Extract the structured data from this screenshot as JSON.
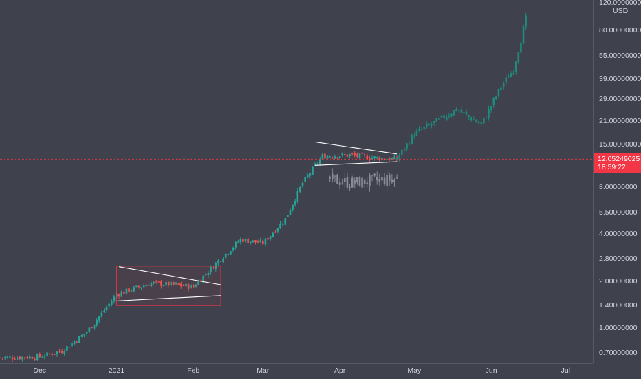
{
  "axis": {
    "unit": "USD",
    "price_ticks": [
      "120.00000000",
      "80.00000000",
      "55.00000000",
      "39.00000000",
      "29.00000000",
      "21.00000000",
      "15.00000000",
      "8.00000000",
      "5.50000000",
      "4.00000000",
      "2.80000000",
      "2.00000000",
      "1.40000000",
      "1.00000000",
      "0.70000000"
    ],
    "time_ticks": [
      "Dec",
      "2021",
      "Feb",
      "Mar",
      "Apr",
      "May",
      "Jun",
      "Jul"
    ]
  },
  "last_price": {
    "value": "12.05249025",
    "countdown": "18:59:22"
  },
  "colors": {
    "up": "#26a69a",
    "down": "#ef5350",
    "projection": "#1f8a7c",
    "ghost": "#8a8d96",
    "line": "#f23645",
    "drawing": "#ffffff"
  },
  "chart_data": {
    "type": "candlestick",
    "scale": "log",
    "ylim": [
      0.6,
      125
    ],
    "xlabel": "",
    "ylabel": "",
    "x_range": [
      "2020-11-15",
      "2021-07-12"
    ],
    "last_price": 12.05249025,
    "price_history": [
      {
        "date": "2020-11-15",
        "close": 0.65
      },
      {
        "date": "2020-12-01",
        "close": 0.66
      },
      {
        "date": "2020-12-10",
        "close": 0.72
      },
      {
        "date": "2020-12-20",
        "close": 0.95
      },
      {
        "date": "2020-12-27",
        "close": 1.3
      },
      {
        "date": "2021-01-01",
        "close": 1.65
      },
      {
        "date": "2021-01-15",
        "close": 1.95
      },
      {
        "date": "2021-02-01",
        "close": 1.85
      },
      {
        "date": "2021-02-10",
        "close": 2.6
      },
      {
        "date": "2021-02-20",
        "close": 3.7
      },
      {
        "date": "2021-03-01",
        "close": 3.5
      },
      {
        "date": "2021-03-10",
        "close": 5.0
      },
      {
        "date": "2021-03-17",
        "close": 8.5
      },
      {
        "date": "2021-03-25",
        "close": 12.6
      },
      {
        "date": "2021-04-05",
        "close": 12.8
      },
      {
        "date": "2021-04-15",
        "close": 12.3
      },
      {
        "date": "2021-04-24",
        "close": 12.05
      }
    ],
    "projection": [
      {
        "date": "2021-04-24",
        "close": 12.05
      },
      {
        "date": "2021-05-01",
        "close": 17.5
      },
      {
        "date": "2021-05-10",
        "close": 21.0
      },
      {
        "date": "2021-05-18",
        "close": 25.0
      },
      {
        "date": "2021-05-28",
        "close": 20.0
      },
      {
        "date": "2021-06-05",
        "close": 35.0
      },
      {
        "date": "2021-06-10",
        "close": 45.0
      },
      {
        "date": "2021-06-15",
        "close": 95.0
      }
    ],
    "ghost_projection": [
      {
        "date": "2021-03-28",
        "close": 9.0
      },
      {
        "date": "2021-04-05",
        "close": 8.5
      },
      {
        "date": "2021-04-15",
        "close": 8.8
      },
      {
        "date": "2021-04-24",
        "close": 9.0
      }
    ],
    "drawings": [
      {
        "type": "rectangle",
        "from": "2021-01-01",
        "to": "2021-02-12",
        "low": 1.4,
        "high": 2.5
      },
      {
        "type": "trendline",
        "from": [
          "2021-01-02",
          2.48
        ],
        "to": [
          "2021-02-12",
          1.9
        ]
      },
      {
        "type": "trendline",
        "from": [
          "2021-01-01",
          1.5
        ],
        "to": [
          "2021-02-12",
          1.62
        ]
      },
      {
        "type": "trendline",
        "from": [
          "2021-03-22",
          15.5
        ],
        "to": [
          "2021-04-24",
          13.0
        ]
      },
      {
        "type": "trendline",
        "from": [
          "2021-03-22",
          11.0
        ],
        "to": [
          "2021-04-24",
          11.6
        ]
      }
    ]
  }
}
